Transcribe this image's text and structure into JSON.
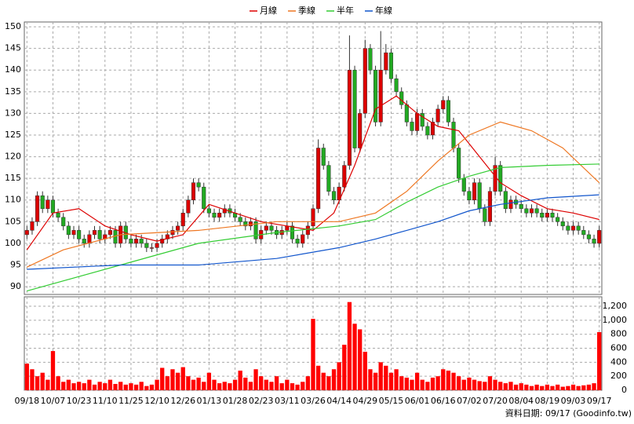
{
  "chart_data": {
    "type": "candlestick",
    "categories": [
      "09/18",
      null,
      null,
      null,
      null,
      "10/07",
      null,
      null,
      null,
      null,
      "10/23",
      null,
      null,
      null,
      null,
      "11/10",
      null,
      null,
      null,
      null,
      "11/25",
      null,
      null,
      null,
      null,
      "12/10",
      null,
      null,
      null,
      null,
      "12/26",
      null,
      null,
      null,
      null,
      "01/13",
      null,
      null,
      null,
      null,
      "01/28",
      null,
      null,
      null,
      null,
      "02/23",
      null,
      null,
      null,
      null,
      "03/11",
      null,
      null,
      null,
      null,
      "03/26",
      null,
      null,
      null,
      null,
      "04/14",
      null,
      null,
      null,
      null,
      "04/29",
      null,
      null,
      null,
      null,
      "05/15",
      null,
      null,
      null,
      null,
      "06/01",
      null,
      null,
      null,
      null,
      "06/16",
      null,
      null,
      null,
      null,
      "07/02",
      null,
      null,
      null,
      null,
      "07/20",
      null,
      null,
      null,
      null,
      "08/04",
      null,
      null,
      null,
      null,
      "08/19",
      null,
      null,
      null,
      null,
      "09/03",
      null,
      null,
      null,
      null,
      "09/17"
    ],
    "open": [
      102,
      103,
      105,
      111,
      108,
      110,
      107,
      106,
      104,
      102,
      103,
      101,
      100,
      102,
      103,
      101,
      102,
      103,
      100,
      104,
      101,
      100,
      101,
      100,
      99,
      99,
      100,
      101,
      102,
      103,
      104,
      107,
      110,
      114,
      113,
      108,
      107,
      106,
      107,
      108,
      107,
      106,
      105,
      104,
      105,
      101,
      103,
      104,
      103,
      102,
      103,
      104,
      101,
      100,
      102,
      104,
      108,
      122,
      118,
      112,
      110,
      113,
      118,
      140,
      122,
      130,
      145,
      140,
      128,
      140,
      144,
      138,
      135,
      132,
      128,
      126,
      130,
      127,
      125,
      128,
      131,
      133,
      128,
      122,
      115,
      112,
      110,
      114,
      108,
      105,
      112,
      118,
      112,
      108,
      110,
      109,
      108,
      107,
      108,
      107,
      106,
      107,
      106,
      105,
      104,
      103,
      104,
      103,
      102,
      101,
      100
    ],
    "high": [
      104,
      106,
      112,
      112,
      111,
      111,
      108,
      107,
      105,
      104,
      104,
      102,
      103,
      104,
      104,
      103,
      104,
      104,
      105,
      105,
      102,
      102,
      102,
      101,
      100,
      101,
      102,
      103,
      104,
      105,
      108,
      111,
      115,
      115,
      114,
      109,
      108,
      108,
      109,
      109,
      108,
      107,
      106,
      106,
      106,
      104,
      105,
      105,
      104,
      104,
      105,
      105,
      102,
      103,
      105,
      109,
      124,
      123,
      119,
      113,
      114,
      119,
      148,
      141,
      131,
      147,
      146,
      141,
      149,
      146,
      145,
      139,
      136,
      133,
      129,
      131,
      131,
      128,
      129,
      132,
      134,
      134,
      129,
      123,
      116,
      113,
      115,
      115,
      109,
      113,
      120,
      119,
      113,
      111,
      111,
      110,
      109,
      109,
      109,
      108,
      108,
      108,
      107,
      106,
      105,
      105,
      105,
      104,
      103,
      102,
      104
    ],
    "low": [
      101,
      102,
      104,
      107,
      107,
      106,
      105,
      103,
      101,
      101,
      100,
      99,
      99,
      101,
      100,
      100,
      101,
      99,
      99,
      100,
      99,
      99,
      99,
      98,
      98,
      98,
      99,
      100,
      101,
      102,
      103,
      106,
      109,
      112,
      107,
      106,
      105,
      105,
      106,
      106,
      105,
      104,
      103,
      103,
      100,
      100,
      102,
      102,
      101,
      101,
      102,
      100,
      99,
      99,
      101,
      103,
      107,
      117,
      111,
      109,
      109,
      112,
      117,
      121,
      121,
      129,
      139,
      127,
      127,
      139,
      137,
      134,
      131,
      127,
      125,
      125,
      126,
      124,
      124,
      127,
      130,
      127,
      121,
      114,
      111,
      109,
      109,
      107,
      104,
      104,
      111,
      111,
      107,
      107,
      108,
      107,
      106,
      106,
      106,
      105,
      105,
      105,
      104,
      103,
      102,
      102,
      102,
      101,
      100,
      99,
      99
    ],
    "close": [
      103,
      105,
      111,
      108,
      110,
      107,
      106,
      104,
      102,
      103,
      101,
      100,
      102,
      103,
      101,
      102,
      103,
      100,
      104,
      101,
      100,
      101,
      100,
      99,
      99,
      100,
      101,
      102,
      103,
      104,
      107,
      110,
      114,
      113,
      108,
      107,
      106,
      107,
      108,
      107,
      106,
      105,
      104,
      105,
      101,
      103,
      104,
      103,
      102,
      103,
      104,
      101,
      100,
      102,
      104,
      108,
      122,
      118,
      112,
      110,
      113,
      118,
      140,
      122,
      130,
      145,
      140,
      128,
      140,
      144,
      138,
      135,
      132,
      128,
      126,
      130,
      127,
      125,
      128,
      131,
      133,
      128,
      122,
      115,
      112,
      110,
      114,
      108,
      105,
      112,
      118,
      112,
      108,
      110,
      109,
      108,
      107,
      108,
      107,
      106,
      107,
      106,
      105,
      104,
      103,
      104,
      103,
      102,
      101,
      100,
      103
    ],
    "up_color": "#dd0000",
    "down_color": "#22aa22",
    "series": [
      {
        "name": "月線",
        "color": "#dd0000",
        "x": [
          0,
          5,
          10,
          15,
          20,
          25,
          30,
          35,
          40,
          45,
          50,
          55,
          59,
          63,
          67,
          71,
          75,
          79,
          83,
          87,
          91,
          95,
          100,
          105,
          110
        ],
        "values": [
          98.5,
          107,
          108,
          104,
          102,
          100.5,
          102,
          109,
          107,
          105,
          104,
          103,
          107,
          118,
          131,
          134,
          130,
          127,
          126,
          120,
          114,
          111,
          108,
          107,
          105.5
        ]
      },
      {
        "name": "季線",
        "color": "#ee7722",
        "x": [
          0,
          7,
          18,
          33,
          48,
          60,
          67,
          73,
          79,
          85,
          91,
          97,
          103,
          110
        ],
        "values": [
          94.5,
          98.5,
          102,
          103,
          105,
          105,
          107,
          112,
          119,
          125,
          128,
          126,
          122,
          114
        ]
      },
      {
        "name": "半年",
        "color": "#33cc33",
        "x": [
          0,
          18,
          33,
          48,
          60,
          67,
          73,
          79,
          85,
          91,
          100,
          110
        ],
        "values": [
          89,
          95,
          100,
          102.5,
          104,
          105.5,
          109.5,
          113,
          115.5,
          117.5,
          118,
          118.3
        ]
      },
      {
        "name": "年線",
        "color": "#1155cc",
        "x": [
          0,
          18,
          33,
          48,
          60,
          67,
          73,
          79,
          85,
          91,
          100,
          110
        ],
        "values": [
          94,
          95,
          95,
          96.5,
          99,
          101,
          103,
          105,
          107.5,
          109,
          110.5,
          111.2
        ]
      }
    ],
    "ylim": [
      88.2,
      151.1
    ],
    "yticks": [
      90,
      95,
      100,
      105,
      110,
      115,
      120,
      125,
      130,
      135,
      140,
      145,
      150
    ],
    "grid": true,
    "volume": {
      "color": "#ff0000",
      "ylim": [
        0,
        1335
      ],
      "yticks": [
        0,
        200,
        400,
        600,
        800,
        {
          "value": 1000,
          "label": "1,000"
        },
        {
          "value": 1200,
          "label": "1,200"
        }
      ],
      "values": [
        380,
        300,
        200,
        250,
        150,
        560,
        200,
        120,
        150,
        100,
        120,
        100,
        150,
        80,
        120,
        100,
        150,
        90,
        120,
        80,
        100,
        80,
        120,
        60,
        80,
        150,
        320,
        200,
        300,
        250,
        330,
        200,
        150,
        180,
        120,
        250,
        150,
        100,
        120,
        100,
        150,
        280,
        180,
        120,
        300,
        200,
        150,
        120,
        200,
        100,
        150,
        100,
        80,
        120,
        200,
        1020,
        350,
        250,
        200,
        300,
        400,
        650,
        1260,
        950,
        870,
        550,
        300,
        250,
        400,
        350,
        250,
        300,
        200,
        180,
        150,
        250,
        150,
        120,
        180,
        200,
        300,
        280,
        250,
        200,
        150,
        180,
        150,
        130,
        120,
        200,
        150,
        120,
        100,
        120,
        80,
        100,
        80,
        60,
        80,
        60,
        80,
        60,
        80,
        50,
        60,
        80,
        60,
        70,
        80,
        100,
        830
      ]
    },
    "note": "資料日期: 09/17 (Goodinfo.tw)"
  }
}
